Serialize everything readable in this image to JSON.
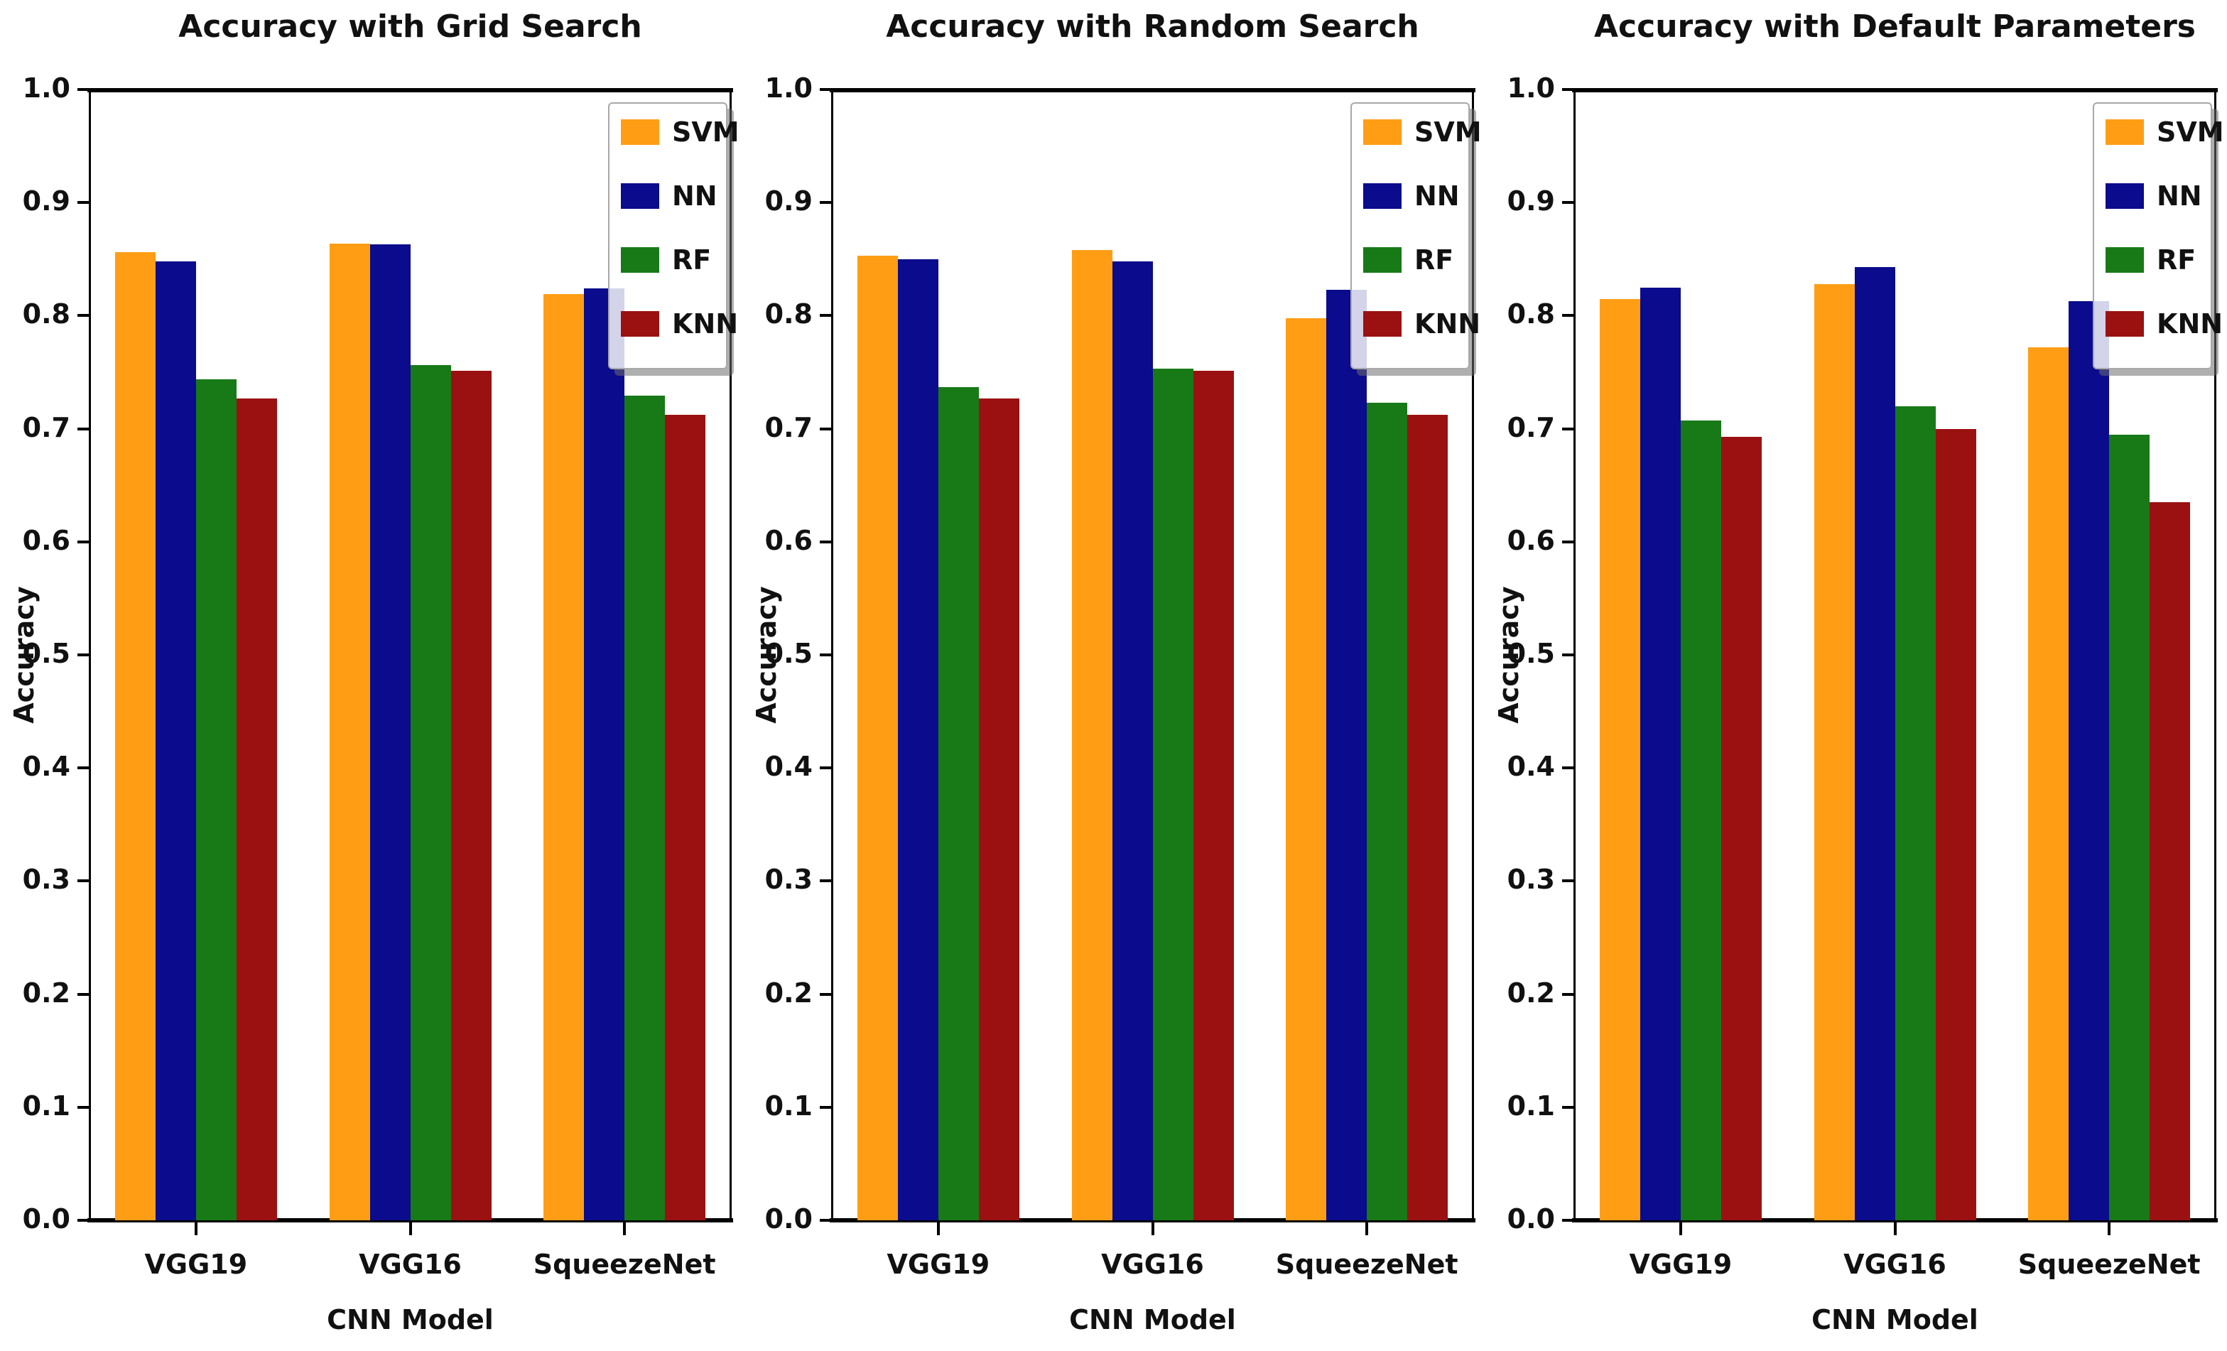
{
  "figure": {
    "background": "#ffffff",
    "ylabel": "Accuracy",
    "xlabel": "CNN Model",
    "ytick_labels": [
      "0.0",
      "0.1",
      "0.2",
      "0.3",
      "0.4",
      "0.5",
      "0.6",
      "0.7",
      "0.8",
      "0.9",
      "1.0"
    ]
  },
  "legend": {
    "position": "upper-right",
    "entries": [
      {
        "label": "SVM",
        "color": "#ff9e15"
      },
      {
        "label": "NN",
        "color": "#0b0b8d"
      },
      {
        "label": "RF",
        "color": "#177a17"
      },
      {
        "label": "KNN",
        "color": "#9b1111"
      }
    ]
  },
  "chart_data": [
    {
      "type": "bar",
      "title": "Accuracy with Grid Search",
      "xlabel": "CNN Model",
      "ylabel": "Accuracy",
      "ylim": [
        0.0,
        1.0
      ],
      "grid": false,
      "legend_position": "upper-right",
      "categories": [
        "VGG19",
        "VGG16",
        "SqueezeNet"
      ],
      "series": [
        {
          "name": "SVM",
          "color": "#ff9e15",
          "values": [
            0.856,
            0.864,
            0.819
          ]
        },
        {
          "name": "NN",
          "color": "#0b0b8d",
          "values": [
            0.848,
            0.863,
            0.824
          ]
        },
        {
          "name": "RF",
          "color": "#177a17",
          "values": [
            0.744,
            0.756,
            0.729
          ]
        },
        {
          "name": "KNN",
          "color": "#9b1111",
          "values": [
            0.727,
            0.751,
            0.712
          ]
        }
      ]
    },
    {
      "type": "bar",
      "title": "Accuracy with Random Search",
      "xlabel": "CNN Model",
      "ylabel": "Accuracy",
      "ylim": [
        0.0,
        1.0
      ],
      "grid": false,
      "legend_position": "upper-right",
      "categories": [
        "VGG19",
        "VGG16",
        "SqueezeNet"
      ],
      "series": [
        {
          "name": "SVM",
          "color": "#ff9e15",
          "values": [
            0.853,
            0.858,
            0.798
          ]
        },
        {
          "name": "NN",
          "color": "#0b0b8d",
          "values": [
            0.85,
            0.848,
            0.823
          ]
        },
        {
          "name": "RF",
          "color": "#177a17",
          "values": [
            0.737,
            0.753,
            0.723
          ]
        },
        {
          "name": "KNN",
          "color": "#9b1111",
          "values": [
            0.727,
            0.751,
            0.712
          ]
        }
      ]
    },
    {
      "type": "bar",
      "title": "Accuracy with Default Parameters",
      "xlabel": "CNN Model",
      "ylabel": "Accuracy",
      "ylim": [
        0.0,
        1.0
      ],
      "grid": false,
      "legend_position": "upper-right",
      "categories": [
        "VGG19",
        "VGG16",
        "SqueezeNet"
      ],
      "series": [
        {
          "name": "SVM",
          "color": "#ff9e15",
          "values": [
            0.815,
            0.828,
            0.772
          ]
        },
        {
          "name": "NN",
          "color": "#0b0b8d",
          "values": [
            0.825,
            0.843,
            0.813
          ]
        },
        {
          "name": "RF",
          "color": "#177a17",
          "values": [
            0.707,
            0.72,
            0.695
          ]
        },
        {
          "name": "KNN",
          "color": "#9b1111",
          "values": [
            0.693,
            0.7,
            0.635
          ]
        }
      ]
    }
  ]
}
